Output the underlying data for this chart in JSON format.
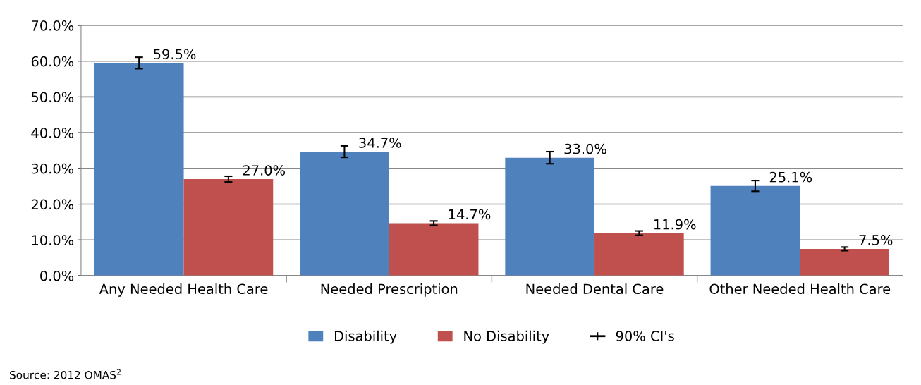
{
  "chart_data": {
    "type": "bar",
    "categories": [
      "Any Needed Health Care",
      "Needed Prescription",
      "Needed Dental Care",
      "Other Needed Health Care"
    ],
    "series": [
      {
        "name": "Disability",
        "color": "#4f81bd",
        "values": [
          59.5,
          34.7,
          33.0,
          25.1
        ],
        "errors": [
          1.6,
          1.6,
          1.7,
          1.5
        ],
        "value_labels": [
          "59.5%",
          "34.7%",
          "33.0%",
          "25.1%"
        ]
      },
      {
        "name": "No Disability",
        "color": "#c0504d",
        "values": [
          27.0,
          14.7,
          11.9,
          7.5
        ],
        "errors": [
          0.8,
          0.6,
          0.6,
          0.5
        ],
        "value_labels": [
          "27.0%",
          "14.7%",
          "11.9%",
          "7.5%"
        ]
      }
    ],
    "ylim": [
      0,
      70
    ],
    "yticks": [
      {
        "value": 0,
        "label": "0.0%"
      },
      {
        "value": 10,
        "label": "10.0%"
      },
      {
        "value": 20,
        "label": "20.0%"
      },
      {
        "value": 30,
        "label": "30.0%"
      },
      {
        "value": 40,
        "label": "40.0%"
      },
      {
        "value": 50,
        "label": "50.0%"
      },
      {
        "value": 60,
        "label": "60.0%"
      },
      {
        "value": 70,
        "label": "70.0%"
      }
    ],
    "grid": "y",
    "legend": "bottom",
    "annotations": [
      "90% CI's",
      "Source: 2012 OMAS$^{2}$"
    ]
  }
}
